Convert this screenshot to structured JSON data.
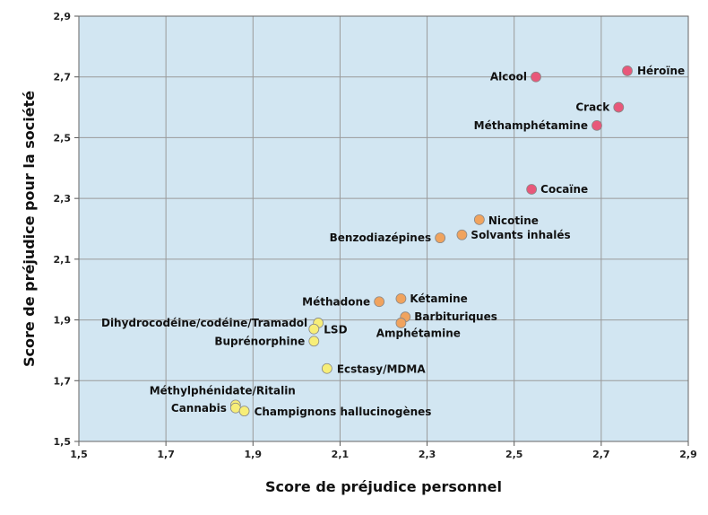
{
  "chart_data": {
    "type": "scatter",
    "xlabel": "Score de préjudice personnel",
    "ylabel": "Score de préjudice pour la société",
    "xlim": [
      1.5,
      2.9
    ],
    "ylim": [
      1.5,
      2.9
    ],
    "x_ticks": [
      "1,5",
      "1,7",
      "1,9",
      "2,1",
      "2,3",
      "2,5",
      "2,7",
      "2,9"
    ],
    "y_ticks": [
      "1,5",
      "1,7",
      "1,9",
      "2,1",
      "2,3",
      "2,5",
      "2,7",
      "2,9"
    ],
    "grid": true,
    "colors": {
      "plot_background": "#d2e6f2",
      "grid": "#9a9a9a",
      "high": "#e8587a",
      "medium": "#f0a35e",
      "low": "#f7ee78"
    },
    "points": [
      {
        "label": "Héroïne",
        "x": 2.76,
        "y": 2.72,
        "group": "high"
      },
      {
        "label": "Alcool",
        "x": 2.55,
        "y": 2.7,
        "group": "high"
      },
      {
        "label": "Crack",
        "x": 2.74,
        "y": 2.6,
        "group": "high"
      },
      {
        "label": "Méthamphétamine",
        "x": 2.69,
        "y": 2.54,
        "group": "high"
      },
      {
        "label": "Cocaïne",
        "x": 2.54,
        "y": 2.33,
        "group": "high"
      },
      {
        "label": "Nicotine",
        "x": 2.42,
        "y": 2.23,
        "group": "medium"
      },
      {
        "label": "Benzodiazépines",
        "x": 2.33,
        "y": 2.17,
        "group": "medium"
      },
      {
        "label": "Solvants inhalés",
        "x": 2.38,
        "y": 2.18,
        "group": "medium"
      },
      {
        "label": "Méthadone",
        "x": 2.19,
        "y": 1.96,
        "group": "medium"
      },
      {
        "label": "Kétamine",
        "x": 2.24,
        "y": 1.97,
        "group": "medium"
      },
      {
        "label": "Barbituriques",
        "x": 2.25,
        "y": 1.91,
        "group": "medium"
      },
      {
        "label": "Amphétamine",
        "x": 2.24,
        "y": 1.89,
        "group": "medium"
      },
      {
        "label": "Dihydrocodéine/codéine/Tramadol",
        "x": 2.05,
        "y": 1.89,
        "group": "low"
      },
      {
        "label": "LSD",
        "x": 2.04,
        "y": 1.87,
        "group": "low"
      },
      {
        "label": "Buprénorphine",
        "x": 2.04,
        "y": 1.83,
        "group": "low"
      },
      {
        "label": "Ecstasy/MDMA",
        "x": 2.07,
        "y": 1.74,
        "group": "low"
      },
      {
        "label": "Méthylphénidate/Ritalin",
        "x": 1.86,
        "y": 1.62,
        "group": "low"
      },
      {
        "label": "Cannabis",
        "x": 1.86,
        "y": 1.61,
        "group": "low"
      },
      {
        "label": "Champignons hallucinogènes",
        "x": 1.88,
        "y": 1.6,
        "group": "low"
      }
    ]
  }
}
